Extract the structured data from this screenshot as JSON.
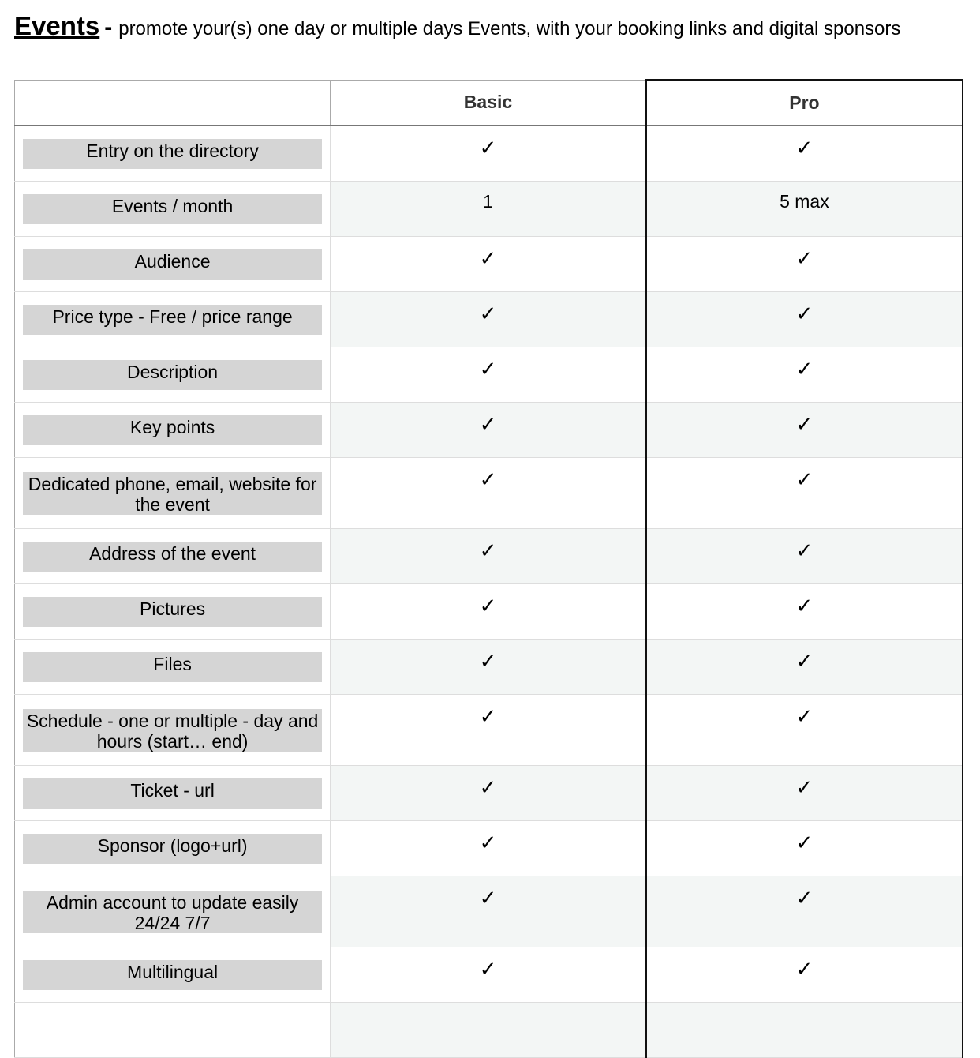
{
  "title": {
    "main": "Events",
    "separator": "-",
    "subtitle": "promote your(s) one day or multiple days Events, with your booking links and digital sponsors"
  },
  "columns": [
    "",
    "Basic",
    "Pro"
  ],
  "rows": [
    {
      "feature": "Entry on the directory",
      "basic": "✓",
      "pro": "✓"
    },
    {
      "feature": "Events / month",
      "basic": "1",
      "pro": "5 max"
    },
    {
      "feature": "Audience",
      "basic": "✓",
      "pro": "✓"
    },
    {
      "feature": "Price type - Free / price range",
      "basic": "✓",
      "pro": "✓"
    },
    {
      "feature": "Description",
      "basic": "✓",
      "pro": "✓"
    },
    {
      "feature": "Key points",
      "basic": "✓",
      "pro": "✓"
    },
    {
      "feature": "Dedicated phone, email, website for the event",
      "basic": "✓",
      "pro": "✓",
      "tall": true
    },
    {
      "feature": "Address of the event",
      "basic": "✓",
      "pro": "✓"
    },
    {
      "feature": "Pictures",
      "basic": "✓",
      "pro": "✓"
    },
    {
      "feature": "Files",
      "basic": "✓",
      "pro": "✓"
    },
    {
      "feature": "Schedule - one or multiple - day and hours (start… end)",
      "basic": "✓",
      "pro": "✓",
      "tall": true
    },
    {
      "feature": "Ticket - url",
      "basic": "✓",
      "pro": "✓"
    },
    {
      "feature": "Sponsor (logo+url)",
      "basic": "✓",
      "pro": "✓"
    },
    {
      "feature": "Admin account to update easily 24/24 7/7",
      "basic": "✓",
      "pro": "✓",
      "tall": true
    },
    {
      "feature": "Multilingual",
      "basic": "✓",
      "pro": "✓"
    },
    {
      "feature": "",
      "basic": "",
      "pro": ""
    }
  ]
}
